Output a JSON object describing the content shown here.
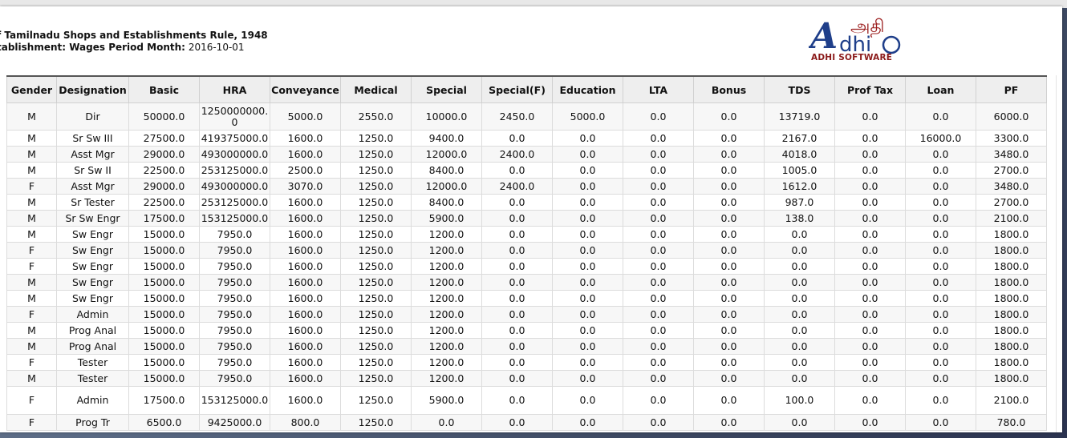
{
  "report": {
    "line1": "f Tamilnadu Shops and Establishments Rule, 1948",
    "line2_label": "tablishment: Wages Period Month:",
    "line2_value": "2016-10-01"
  },
  "logo": {
    "tamil_text": "அதி",
    "brand_text": "ADHI SOFTWARE",
    "colors": {
      "blue": "#1f3f8a",
      "red": "#9b1d1d"
    }
  },
  "table": {
    "headers": [
      "Gender",
      "Designation",
      "Basic",
      "HRA",
      "Conveyance",
      "Medical",
      "Special",
      "Special(F)",
      "Education",
      "LTA",
      "Bonus",
      "TDS",
      "Prof Tax",
      "Loan",
      "PF"
    ],
    "rows": [
      [
        "M",
        "Dir",
        "50000.0",
        "1250000000.0",
        "5000.0",
        "2550.0",
        "10000.0",
        "2450.0",
        "5000.0",
        "0.0",
        "0.0",
        "13719.0",
        "0.0",
        "0.0",
        "6000.0"
      ],
      [
        "M",
        "Sr Sw III",
        "27500.0",
        "419375000.0",
        "1600.0",
        "1250.0",
        "9400.0",
        "0.0",
        "0.0",
        "0.0",
        "0.0",
        "2167.0",
        "0.0",
        "16000.0",
        "3300.0"
      ],
      [
        "M",
        "Asst Mgr",
        "29000.0",
        "493000000.0",
        "1600.0",
        "1250.0",
        "12000.0",
        "2400.0",
        "0.0",
        "0.0",
        "0.0",
        "4018.0",
        "0.0",
        "0.0",
        "3480.0"
      ],
      [
        "M",
        "Sr Sw II",
        "22500.0",
        "253125000.0",
        "2500.0",
        "1250.0",
        "8400.0",
        "0.0",
        "0.0",
        "0.0",
        "0.0",
        "1005.0",
        "0.0",
        "0.0",
        "2700.0"
      ],
      [
        "F",
        "Asst Mgr",
        "29000.0",
        "493000000.0",
        "3070.0",
        "1250.0",
        "12000.0",
        "2400.0",
        "0.0",
        "0.0",
        "0.0",
        "1612.0",
        "0.0",
        "0.0",
        "3480.0"
      ],
      [
        "M",
        "Sr Tester",
        "22500.0",
        "253125000.0",
        "1600.0",
        "1250.0",
        "8400.0",
        "0.0",
        "0.0",
        "0.0",
        "0.0",
        "987.0",
        "0.0",
        "0.0",
        "2700.0"
      ],
      [
        "M",
        "Sr Sw Engr",
        "17500.0",
        "153125000.0",
        "1600.0",
        "1250.0",
        "5900.0",
        "0.0",
        "0.0",
        "0.0",
        "0.0",
        "138.0",
        "0.0",
        "0.0",
        "2100.0"
      ],
      [
        "M",
        "Sw Engr",
        "15000.0",
        "7950.0",
        "1600.0",
        "1250.0",
        "1200.0",
        "0.0",
        "0.0",
        "0.0",
        "0.0",
        "0.0",
        "0.0",
        "0.0",
        "1800.0"
      ],
      [
        "F",
        "Sw Engr",
        "15000.0",
        "7950.0",
        "1600.0",
        "1250.0",
        "1200.0",
        "0.0",
        "0.0",
        "0.0",
        "0.0",
        "0.0",
        "0.0",
        "0.0",
        "1800.0"
      ],
      [
        "F",
        "Sw Engr",
        "15000.0",
        "7950.0",
        "1600.0",
        "1250.0",
        "1200.0",
        "0.0",
        "0.0",
        "0.0",
        "0.0",
        "0.0",
        "0.0",
        "0.0",
        "1800.0"
      ],
      [
        "M",
        "Sw Engr",
        "15000.0",
        "7950.0",
        "1600.0",
        "1250.0",
        "1200.0",
        "0.0",
        "0.0",
        "0.0",
        "0.0",
        "0.0",
        "0.0",
        "0.0",
        "1800.0"
      ],
      [
        "M",
        "Sw Engr",
        "15000.0",
        "7950.0",
        "1600.0",
        "1250.0",
        "1200.0",
        "0.0",
        "0.0",
        "0.0",
        "0.0",
        "0.0",
        "0.0",
        "0.0",
        "1800.0"
      ],
      [
        "F",
        "Admin",
        "15000.0",
        "7950.0",
        "1600.0",
        "1250.0",
        "1200.0",
        "0.0",
        "0.0",
        "0.0",
        "0.0",
        "0.0",
        "0.0",
        "0.0",
        "1800.0"
      ],
      [
        "M",
        "Prog Anal",
        "15000.0",
        "7950.0",
        "1600.0",
        "1250.0",
        "1200.0",
        "0.0",
        "0.0",
        "0.0",
        "0.0",
        "0.0",
        "0.0",
        "0.0",
        "1800.0"
      ],
      [
        "M",
        "Prog Anal",
        "15000.0",
        "7950.0",
        "1600.0",
        "1250.0",
        "1200.0",
        "0.0",
        "0.0",
        "0.0",
        "0.0",
        "0.0",
        "0.0",
        "0.0",
        "1800.0"
      ],
      [
        "F",
        "Tester",
        "15000.0",
        "7950.0",
        "1600.0",
        "1250.0",
        "1200.0",
        "0.0",
        "0.0",
        "0.0",
        "0.0",
        "0.0",
        "0.0",
        "0.0",
        "1800.0"
      ],
      [
        "M",
        "Tester",
        "15000.0",
        "7950.0",
        "1600.0",
        "1250.0",
        "1200.0",
        "0.0",
        "0.0",
        "0.0",
        "0.0",
        "0.0",
        "0.0",
        "0.0",
        "1800.0"
      ],
      [
        "F",
        "Admin",
        "17500.0",
        "153125000.0",
        "1600.0",
        "1250.0",
        "5900.0",
        "0.0",
        "0.0",
        "0.0",
        "0.0",
        "100.0",
        "0.0",
        "0.0",
        "2100.0"
      ],
      [
        "F",
        "Prog Tr",
        "6500.0",
        "9425000.0",
        "800.0",
        "1250.0",
        "0.0",
        "0.0",
        "0.0",
        "0.0",
        "0.0",
        "0.0",
        "0.0",
        "0.0",
        "780.0"
      ]
    ]
  }
}
